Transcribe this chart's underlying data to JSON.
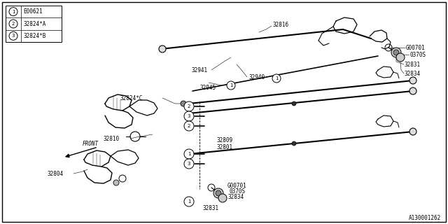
{
  "bg_color": "#ffffff",
  "line_color": "#000000",
  "text_color": "#000000",
  "diagram_id": "A130001262",
  "legend": [
    {
      "num": "1",
      "label": "E00621"
    },
    {
      "num": "2",
      "label": "32824*A"
    },
    {
      "num": "3",
      "label": "32824*B"
    }
  ],
  "font_size": 6.5,
  "small_font_size": 5.5
}
